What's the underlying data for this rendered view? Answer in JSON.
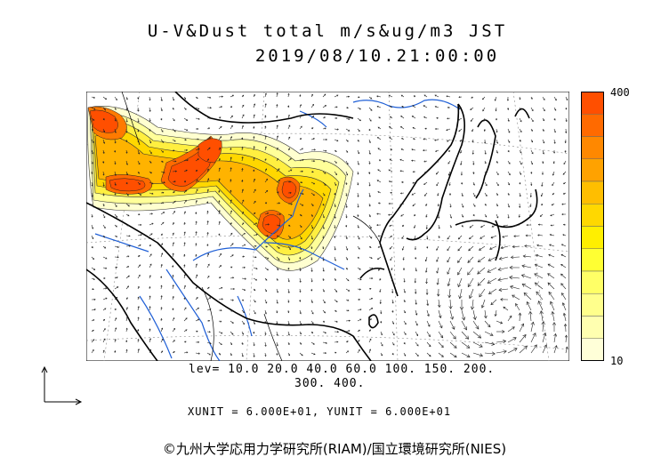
{
  "title": {
    "line1": "U-V&Dust total m/s&ug/m3 JST",
    "line2": "2019/08/10.21:00:00"
  },
  "legend": {
    "max_label": "400",
    "min_label": "10",
    "colors": [
      "#ff4f00",
      "#ff6a00",
      "#ff8800",
      "#ffa200",
      "#ffbe00",
      "#ffd800",
      "#ffef00",
      "#ffff33",
      "#ffff66",
      "#ffff8c",
      "#ffffb0",
      "#ffffd8"
    ]
  },
  "levels": {
    "line1": "lev= 10.0 20.0 40.0 60.0 100. 150. 200.",
    "line2": "300. 400."
  },
  "units": "XUNIT = 6.000E+01, YUNIT = 6.000E+01",
  "copyright": "©九州大学応用力学研究所(RIAM)/国立環境研究所(NIES)"
}
